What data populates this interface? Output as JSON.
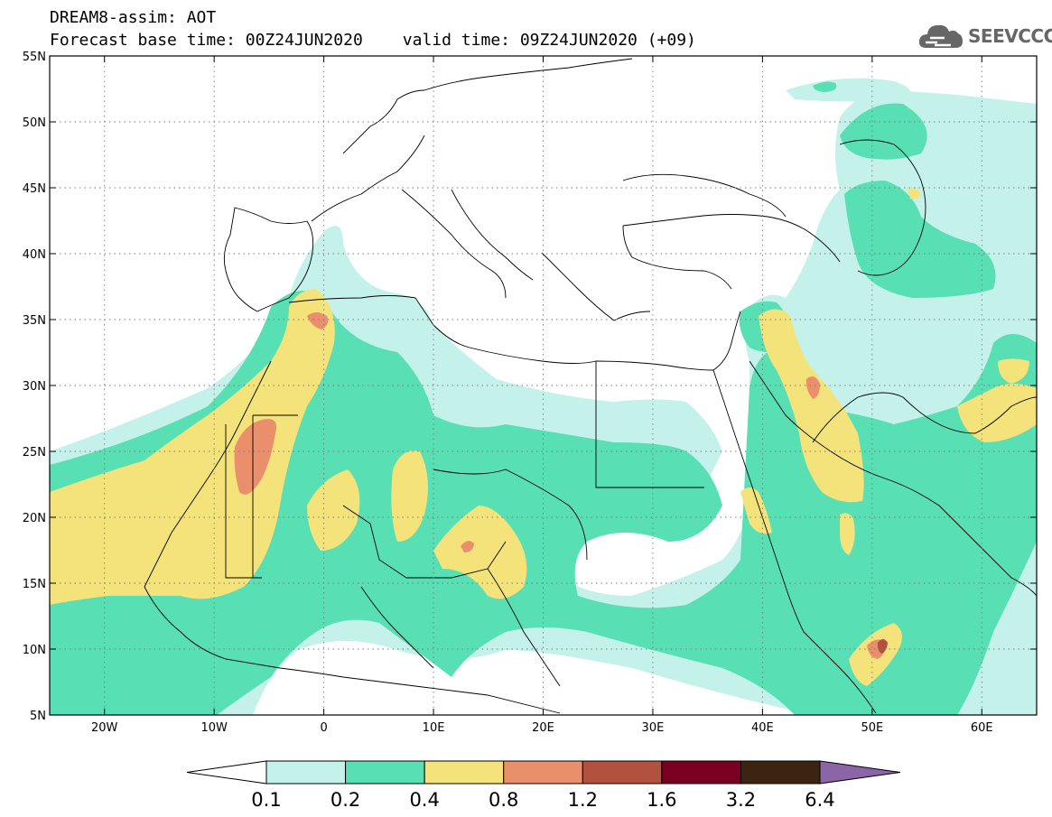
{
  "header": {
    "title": "DREAM8-assim: AOT",
    "base_time": "Forecast base time: 00Z24JUN2020",
    "valid_time": "valid time: 09Z24JUN2020 (+09)"
  },
  "logo": {
    "text": "SEEVCCC",
    "icon": "cloud-icon",
    "color": "#666666"
  },
  "map": {
    "lon_range": [
      -25,
      65
    ],
    "lat_range": [
      5,
      55
    ],
    "lon_ticks": [
      {
        "value": -20,
        "label": "20W"
      },
      {
        "value": -10,
        "label": "10W"
      },
      {
        "value": 0,
        "label": "0"
      },
      {
        "value": 10,
        "label": "10E"
      },
      {
        "value": 20,
        "label": "20E"
      },
      {
        "value": 30,
        "label": "30E"
      },
      {
        "value": 40,
        "label": "40E"
      },
      {
        "value": 50,
        "label": "50E"
      },
      {
        "value": 60,
        "label": "60E"
      }
    ],
    "lat_ticks": [
      {
        "value": 55,
        "label": "55N"
      },
      {
        "value": 50,
        "label": "50N"
      },
      {
        "value": 45,
        "label": "45N"
      },
      {
        "value": 40,
        "label": "40N"
      },
      {
        "value": 35,
        "label": "35N"
      },
      {
        "value": 30,
        "label": "30N"
      },
      {
        "value": 25,
        "label": "25N"
      },
      {
        "value": 20,
        "label": "20N"
      },
      {
        "value": 15,
        "label": "15N"
      },
      {
        "value": 10,
        "label": "10N"
      },
      {
        "value": 5,
        "label": "5N"
      }
    ],
    "grid": "dotted"
  },
  "colorbar": {
    "colors": [
      "#ffffff",
      "#c4f2ea",
      "#58dfb4",
      "#f4e27a",
      "#ea8f6c",
      "#b2513e",
      "#7a0022",
      "#3c2412",
      "#8c65a8"
    ],
    "labels": [
      "0.1",
      "0.2",
      "0.4",
      "0.8",
      "1.2",
      "1.6",
      "3.2",
      "6.4"
    ]
  }
}
